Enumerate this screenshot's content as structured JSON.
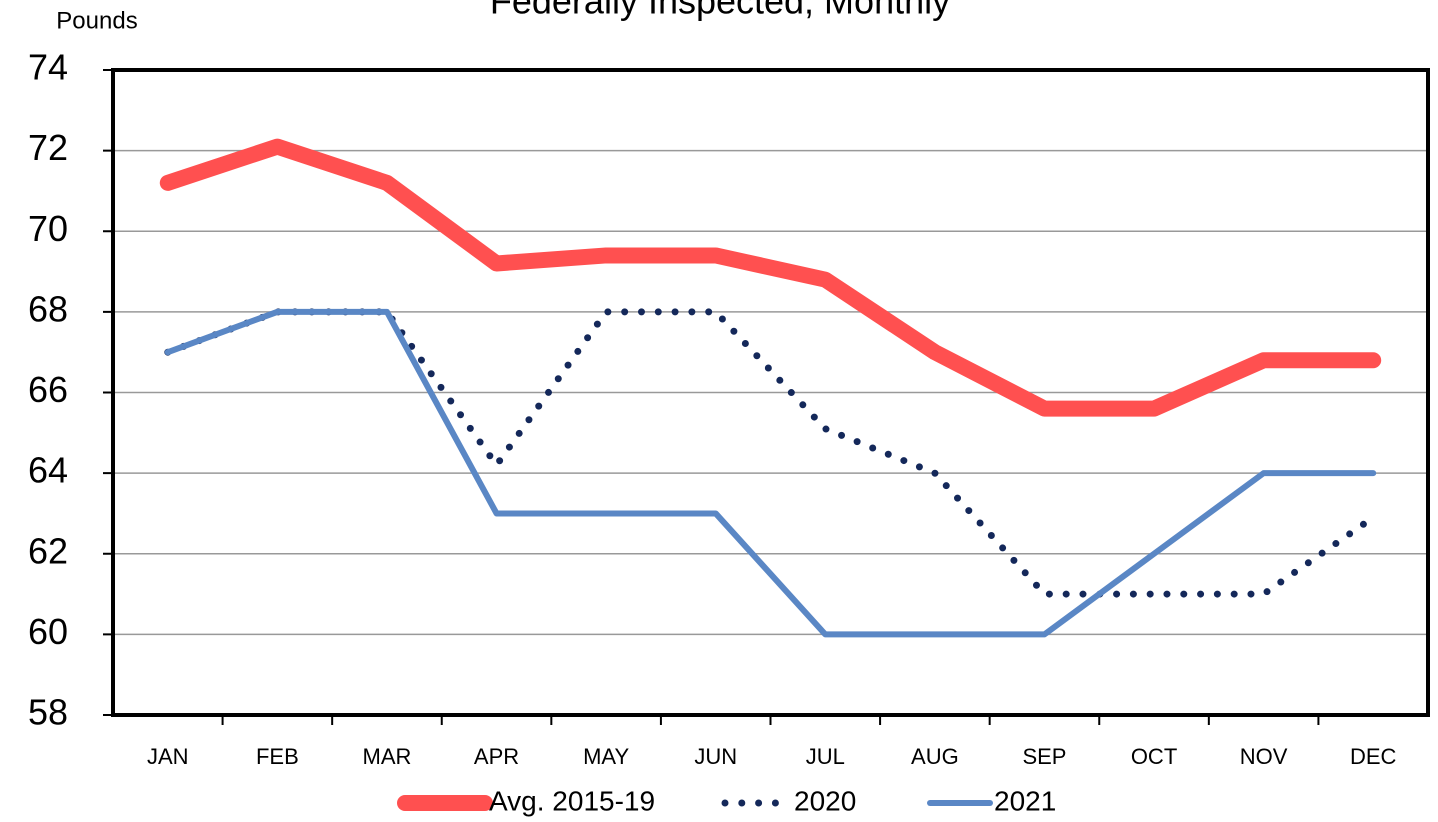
{
  "chart_data": {
    "type": "line",
    "title": "Federally Inspected, Monthly",
    "y_label": "Pounds",
    "categories": [
      "JAN",
      "FEB",
      "MAR",
      "APR",
      "MAY",
      "JUN",
      "JUL",
      "AUG",
      "SEP",
      "OCT",
      "NOV",
      "DEC"
    ],
    "series": [
      {
        "name": "Avg. 2015-19",
        "color": "#ff5050",
        "style": "solid",
        "linewidth": 16,
        "values": [
          71.2,
          72.1,
          71.2,
          69.2,
          69.4,
          69.4,
          68.8,
          67.0,
          65.6,
          65.6,
          66.8,
          66.8
        ]
      },
      {
        "name": "2020",
        "color": "#14285a",
        "style": "dotted",
        "linewidth": 7,
        "values": [
          67,
          68,
          68,
          64.2,
          68,
          68,
          65.1,
          64.0,
          61.0,
          61.0,
          61.0,
          62.9
        ]
      },
      {
        "name": "2021",
        "color": "#5a87c5",
        "style": "solid",
        "linewidth": 6,
        "values": [
          67,
          68,
          68,
          63,
          63,
          63,
          60,
          60,
          60,
          62,
          64,
          64
        ]
      }
    ],
    "ylim": [
      58,
      74
    ],
    "yticks": [
      58,
      60,
      62,
      64,
      66,
      68,
      70,
      72,
      74
    ],
    "grid": true,
    "legend": "bottom"
  }
}
